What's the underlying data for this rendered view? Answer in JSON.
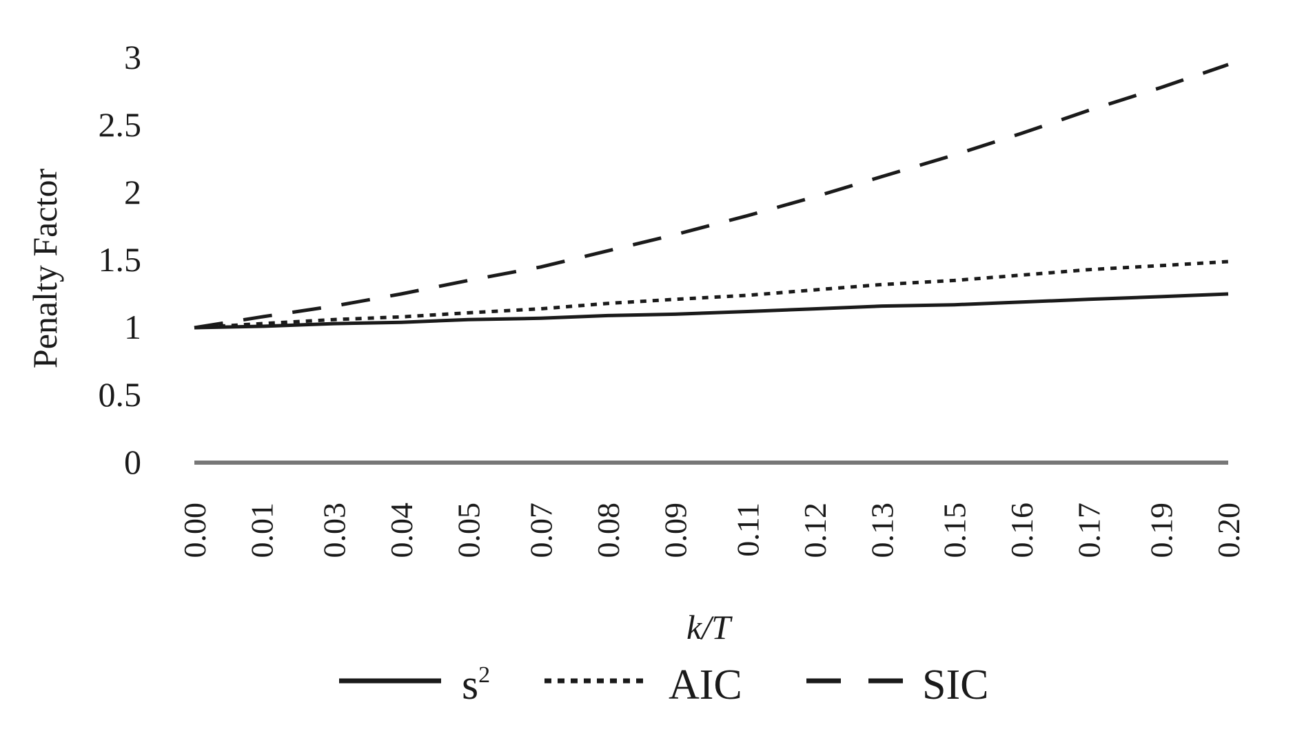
{
  "chart_data": {
    "type": "line",
    "title": "",
    "xlabel": "k/T",
    "ylabel": "Penalty Factor",
    "ylim": [
      0,
      3
    ],
    "yticks": [
      "0",
      "0.5",
      "1",
      "1.5",
      "2",
      "2.5",
      "3"
    ],
    "categories": [
      "0.00",
      "0.01",
      "0.03",
      "0.04",
      "0.05",
      "0.07",
      "0.08",
      "0.09",
      "0.11",
      "0.12",
      "0.13",
      "0.15",
      "0.16",
      "0.17",
      "0.19",
      "0.20"
    ],
    "x": [
      0.0,
      0.013,
      0.027,
      0.04,
      0.053,
      0.067,
      0.08,
      0.093,
      0.107,
      0.12,
      0.133,
      0.147,
      0.16,
      0.173,
      0.187,
      0.2
    ],
    "grid": false,
    "legend_position": "bottom",
    "series": [
      {
        "name": "s",
        "superscript": "2",
        "style": "solid",
        "color": "#1a1a1a",
        "values": [
          1.0,
          1.01,
          1.03,
          1.04,
          1.06,
          1.07,
          1.09,
          1.1,
          1.12,
          1.14,
          1.16,
          1.17,
          1.19,
          1.21,
          1.23,
          1.25
        ]
      },
      {
        "name": "AIC",
        "style": "dotted",
        "color": "#1a1a1a",
        "values": [
          1.0,
          1.03,
          1.06,
          1.08,
          1.11,
          1.14,
          1.18,
          1.21,
          1.24,
          1.28,
          1.32,
          1.35,
          1.39,
          1.43,
          1.46,
          1.49
        ]
      },
      {
        "name": "SIC",
        "style": "dashed",
        "color": "#1a1a1a",
        "values": [
          1.0,
          1.08,
          1.16,
          1.25,
          1.35,
          1.45,
          1.57,
          1.69,
          1.83,
          1.97,
          2.12,
          2.28,
          2.44,
          2.61,
          2.78,
          2.95
        ]
      }
    ],
    "zero_line_color": "#777777"
  }
}
